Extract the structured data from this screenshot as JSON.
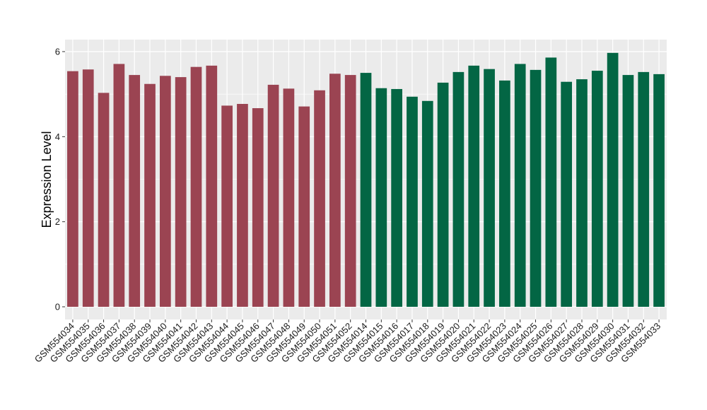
{
  "chart_data": {
    "type": "bar",
    "ylabel": "Expression Level",
    "xlabel": "",
    "ylim": [
      0,
      6.25
    ],
    "yticks": [
      0,
      2,
      4,
      6
    ],
    "grid": true,
    "background": "#ebebeb",
    "grid_color": "#ffffff",
    "group_colors": {
      "group1": "#9b4452",
      "group2": "#036644"
    },
    "categories": [
      "GSM554034",
      "GSM554035",
      "GSM554036",
      "GSM554037",
      "GSM554038",
      "GSM554039",
      "GSM554040",
      "GSM554041",
      "GSM554042",
      "GSM554043",
      "GSM554044",
      "GSM554045",
      "GSM554046",
      "GSM554047",
      "GSM554048",
      "GSM554049",
      "GSM554050",
      "GSM554051",
      "GSM554052",
      "GSM554014",
      "GSM554015",
      "GSM554016",
      "GSM554017",
      "GSM554018",
      "GSM554019",
      "GSM554020",
      "GSM554021",
      "GSM554022",
      "GSM554023",
      "GSM554024",
      "GSM554025",
      "GSM554026",
      "GSM554027",
      "GSM554028",
      "GSM554029",
      "GSM554030",
      "GSM554031",
      "GSM554032",
      "GSM554033"
    ],
    "values": [
      5.54,
      5.58,
      5.03,
      5.71,
      5.45,
      5.24,
      5.43,
      5.4,
      5.64,
      5.67,
      4.73,
      4.77,
      4.67,
      5.22,
      5.13,
      4.71,
      5.09,
      5.48,
      5.45,
      5.5,
      5.14,
      5.12,
      4.94,
      4.84,
      5.27,
      5.52,
      5.67,
      5.59,
      5.32,
      5.71,
      5.57,
      5.86,
      5.29,
      5.35,
      5.55,
      5.97,
      5.45,
      5.52,
      5.47
    ],
    "groups": [
      "group1",
      "group1",
      "group1",
      "group1",
      "group1",
      "group1",
      "group1",
      "group1",
      "group1",
      "group1",
      "group1",
      "group1",
      "group1",
      "group1",
      "group1",
      "group1",
      "group1",
      "group1",
      "group1",
      "group2",
      "group2",
      "group2",
      "group2",
      "group2",
      "group2",
      "group2",
      "group2",
      "group2",
      "group2",
      "group2",
      "group2",
      "group2",
      "group2",
      "group2",
      "group2",
      "group2",
      "group2",
      "group2",
      "group2"
    ]
  }
}
